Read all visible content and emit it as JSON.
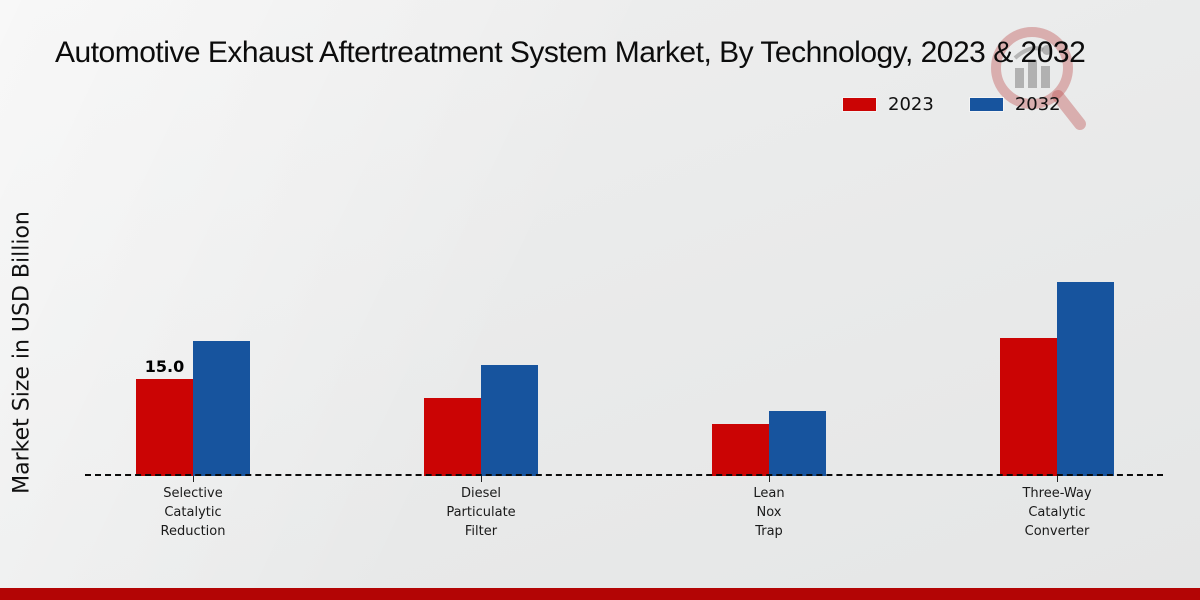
{
  "page": {
    "title": "Automotive Exhaust Aftertreatment System Market, By Technology, 2023 & 2032"
  },
  "legend": {
    "items": [
      {
        "label": "2023",
        "color": "#cb0404"
      },
      {
        "label": "2032",
        "color": "#17549e"
      }
    ]
  },
  "watermark_icon": "market-research-magnifier-logo",
  "footer_color": "#b30505",
  "chart_data": {
    "type": "bar",
    "title": "Automotive Exhaust Aftertreatment System Market, By Technology, 2023 & 2032",
    "xlabel": "",
    "ylabel": "Market Size in USD Billion",
    "ylim": [
      0,
      33
    ],
    "grid": false,
    "baseline_style": "dashed",
    "legend_position": "top-right",
    "categories": [
      {
        "id": "selective-catalytic-reduction",
        "lines": [
          "Selective",
          "Catalytic",
          "Reduction"
        ]
      },
      {
        "id": "diesel-particulate-filter",
        "lines": [
          "Diesel",
          "Particulate",
          "Filter"
        ]
      },
      {
        "id": "lean-nox-trap",
        "lines": [
          "Lean",
          "Nox",
          "Trap"
        ]
      },
      {
        "id": "three-way-catalytic-converter",
        "lines": [
          "Three-Way",
          "Catalytic",
          "Converter"
        ]
      }
    ],
    "series": [
      {
        "name": "2023",
        "color": "#cb0404",
        "values": [
          15.0,
          12.0,
          8.0,
          21.3
        ]
      },
      {
        "name": "2032",
        "color": "#17549e",
        "values": [
          20.9,
          17.1,
          10.0,
          30.0
        ]
      }
    ],
    "data_labels": [
      {
        "series": "2023",
        "category_index": 0,
        "text": "15.0"
      }
    ]
  }
}
